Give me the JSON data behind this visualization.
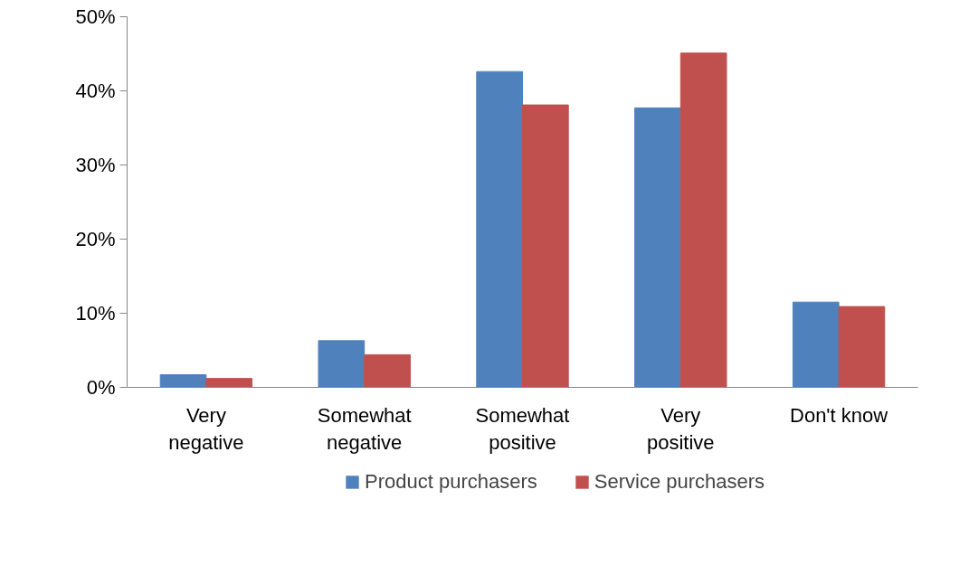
{
  "chart_data": {
    "type": "bar",
    "categories": [
      "Very negative",
      "Somewhat negative",
      "Somewhat positive",
      "Very positive",
      "Don't know"
    ],
    "series": [
      {
        "name": "Product purchasers",
        "color": "#4f81bd",
        "values": [
          1.7,
          6.3,
          42.6,
          37.7,
          11.5
        ]
      },
      {
        "name": "Service purchasers",
        "color": "#c0504d",
        "values": [
          1.2,
          4.4,
          38.1,
          45.1,
          10.9
        ]
      }
    ],
    "ylim": [
      0,
      50
    ],
    "yticks": [
      {
        "value": 0,
        "label": "0%"
      },
      {
        "value": 10,
        "label": "10%"
      },
      {
        "value": 20,
        "label": "20%"
      },
      {
        "value": 30,
        "label": "30%"
      },
      {
        "value": 40,
        "label": "40%"
      },
      {
        "value": 50,
        "label": "50%"
      }
    ],
    "grid": false,
    "legend": "bottom"
  }
}
